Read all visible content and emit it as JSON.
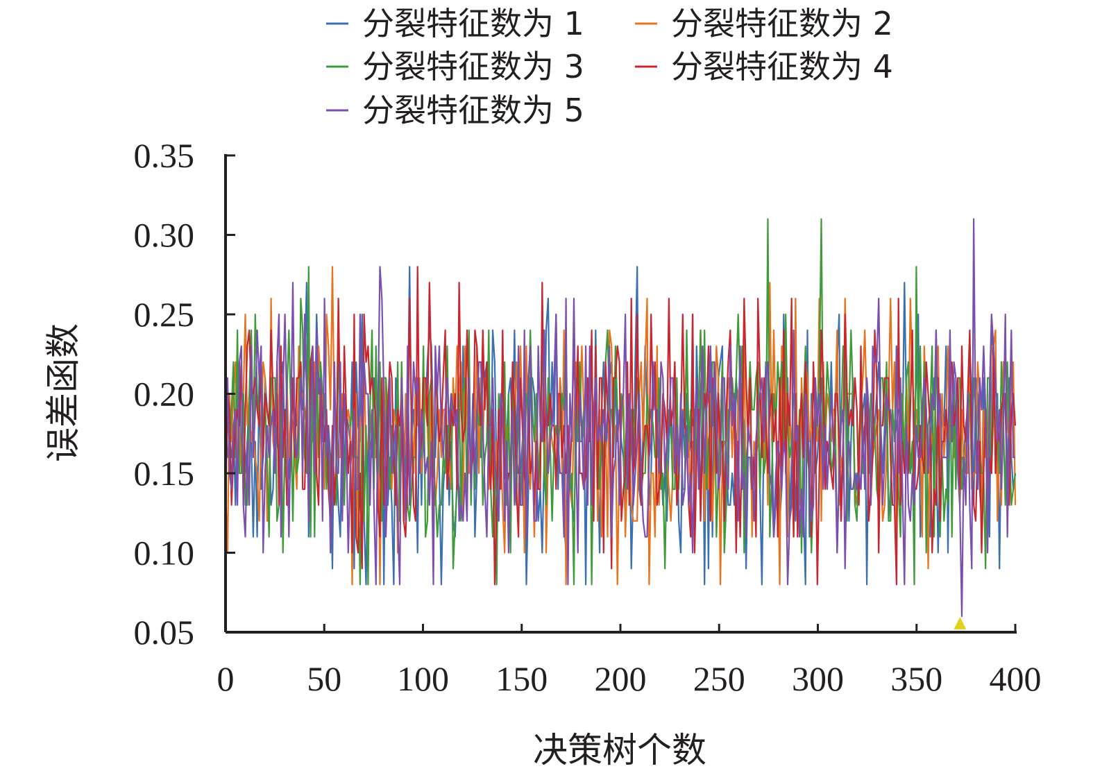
{
  "chart_data": {
    "type": "line",
    "title": "",
    "xlabel": "决策树个数",
    "ylabel": "误差函数",
    "xlim": [
      0,
      400
    ],
    "ylim": [
      0.05,
      0.35
    ],
    "xticks": [
      0,
      50,
      100,
      150,
      200,
      250,
      300,
      350,
      400
    ],
    "xtick_labels": [
      "0",
      "50",
      "100",
      "150",
      "200",
      "250",
      "300",
      "350",
      "400"
    ],
    "yticks": [
      0.05,
      0.1,
      0.15,
      0.2,
      0.25,
      0.3,
      0.35
    ],
    "ytick_labels": [
      "0.05",
      "0.10",
      "0.15",
      "0.20",
      "0.25",
      "0.30",
      "0.35"
    ],
    "grid": false,
    "legend_position": "top",
    "n_points": 400,
    "series": [
      {
        "name": "分裂特征数为 1",
        "color": "#3a6fb0"
      },
      {
        "name": "分裂特征数为 2",
        "color": "#e8731c"
      },
      {
        "name": "分裂特征数为 3",
        "color": "#3f9a3a"
      },
      {
        "name": "分裂特征数为 4",
        "color": "#c8262f"
      },
      {
        "name": "分裂特征数为 5",
        "color": "#7b4fae"
      }
    ],
    "marker": {
      "type": "triangle",
      "color": "#e3d21c",
      "x": 372,
      "y": 0.05
    }
  }
}
